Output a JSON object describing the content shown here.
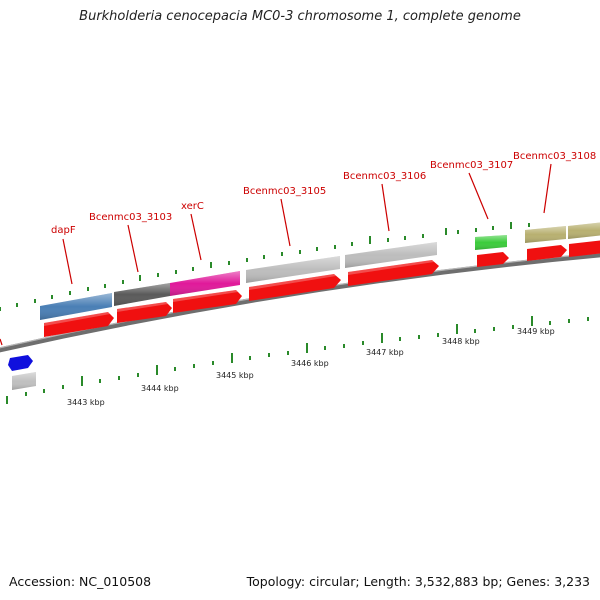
{
  "title": "Burkholderia cenocepacia MC0-3 chromosome 1, complete genome",
  "footer": {
    "accession": "Accession: NC_010508",
    "stats": "Topology: circular; Length: 3,532,883 bp; Genes: 3,233"
  },
  "genes": [
    {
      "name": "dapF",
      "color": "#4a7fb5"
    },
    {
      "name": "Bcenmc03_3103",
      "color": "#5a5a5a"
    },
    {
      "name": "xerC",
      "color": "#e0199a"
    },
    {
      "name": "Bcenmc03_3105",
      "color": "#bdbdbd"
    },
    {
      "name": "Bcenmc03_3106",
      "color": "#bdbdbd"
    },
    {
      "name": "Bcenmc03_3107",
      "color": "#3bcc3b"
    },
    {
      "name": "Bcenmc03_3108",
      "color": "#b8b070"
    }
  ],
  "scale_ticks": [
    "3443 kbp",
    "3444 kbp",
    "3445 kbp",
    "3446 kbp",
    "3447 kbp",
    "3448 kbp",
    "3449 kbp"
  ]
}
